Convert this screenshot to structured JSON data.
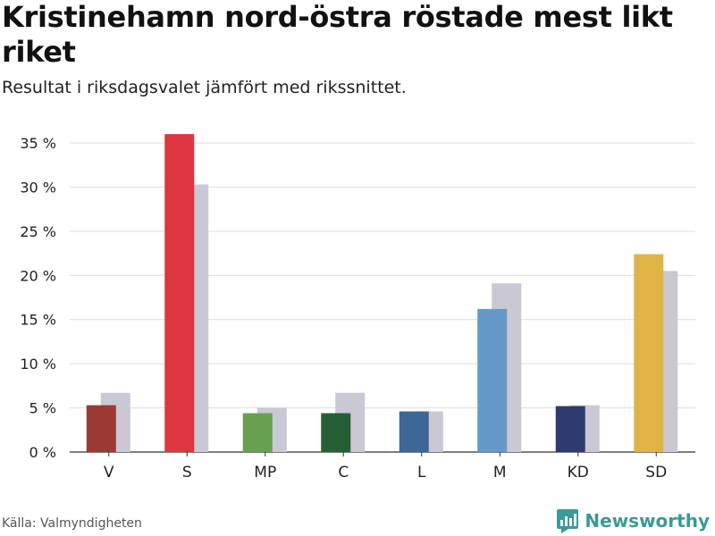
{
  "title": "Kristinehamn nord-östra röstade mest likt riket",
  "subtitle": "Resultat i riksdagsvalet jämfört med rikssnittet.",
  "source": "Källa: Valmyndigheten",
  "logo": {
    "text": "Newsworthy",
    "icon": "newsworthy-bar-chart-icon",
    "color": "#3a9a96"
  },
  "chart_data": {
    "type": "bar",
    "title": "Kristinehamn nord-östra röstade mest likt riket",
    "subtitle": "Resultat i riksdagsvalet jämfört med rikssnittet.",
    "categories": [
      "V",
      "S",
      "MP",
      "C",
      "L",
      "M",
      "KD",
      "SD"
    ],
    "series": [
      {
        "values": [
          5.3,
          36.0,
          4.4,
          4.4,
          4.6,
          16.2,
          5.2,
          22.4
        ],
        "colors": [
          "#9b3a35",
          "#dd3640",
          "#68a052",
          "#275f34",
          "#3f6795",
          "#6498c7",
          "#2f3a6e",
          "#e0b444"
        ]
      },
      {
        "values": [
          6.7,
          30.3,
          5.0,
          6.7,
          4.6,
          19.1,
          5.3,
          20.5
        ],
        "color": "#c9c8d3"
      }
    ],
    "yticks": [
      0,
      5,
      10,
      15,
      20,
      25,
      30,
      35
    ],
    "ytick_suffix": " %",
    "ylim": [
      0,
      35
    ],
    "grid": true,
    "legend": "none"
  }
}
